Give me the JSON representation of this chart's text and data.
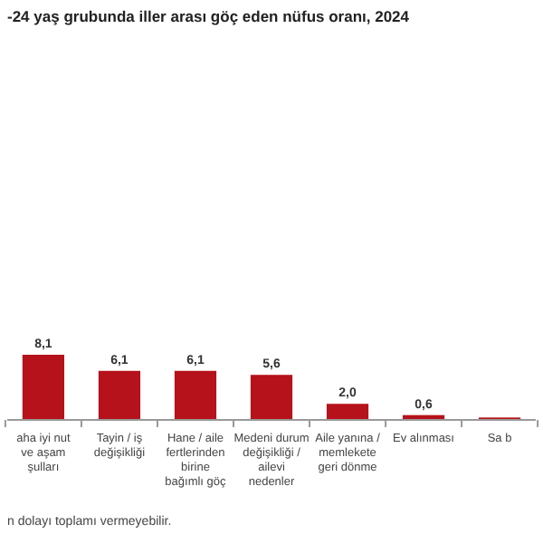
{
  "chart_data": {
    "type": "bar",
    "title": "-24 yaş grubunda iller arası göç eden nüfus oranı, 2024",
    "categories": [
      "aha iyi nut ve aşam şulları",
      "Tayin / iş değişikliği",
      "Hane / aile fertlerinden birine bağımlı göç",
      "Medeni durum değişikliği / ailevi nedenler",
      "Aile yanına / memlekete geri dönme",
      "Ev alınması",
      "Sa b"
    ],
    "values": [
      8.1,
      6.1,
      6.1,
      5.6,
      2.0,
      0.6,
      0.3
    ],
    "value_labels": [
      "8,1",
      "6,1",
      "6,1",
      "5,6",
      "2,0",
      "0,6",
      null
    ],
    "color": "#b5121b",
    "annotations": [
      "n dolayı toplamı vermeyebilir."
    ]
  }
}
